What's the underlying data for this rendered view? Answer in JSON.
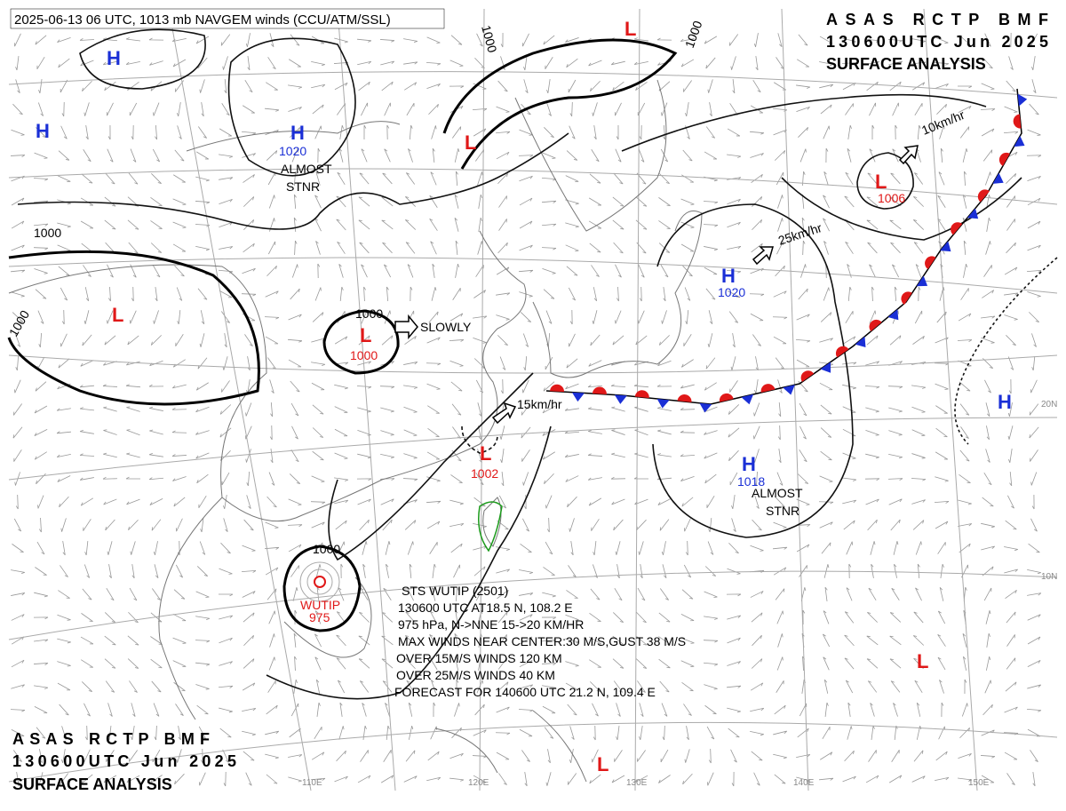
{
  "header": "2025-06-13 06 UTC, 1013 mb NAVGEM winds (CCU/ATM/SSL)",
  "title_top": [
    "ASAS RCTP BMF",
    "130600UTC Jun 2025",
    "SURFACE ANALYSIS"
  ],
  "title_bottom": [
    "ASAS RCTP BMF",
    "130600UTC Jun 2025",
    "SURFACE ANALYSIS"
  ],
  "systems": [
    {
      "label": "H"
    },
    {
      "label": "H"
    },
    {
      "label": "H",
      "pressure": "1020",
      "note": [
        "ALMOST",
        "STNR"
      ]
    },
    {
      "label": "L"
    },
    {
      "label": "L"
    },
    {
      "label": "L"
    },
    {
      "label": "L",
      "pressure": "1000"
    },
    {
      "label": "L",
      "pressure": "1002"
    },
    {
      "label": "L",
      "pressure": "1006"
    },
    {
      "label": "H",
      "pressure": "1020"
    },
    {
      "label": "H",
      "pressure": "1018",
      "note": [
        "ALMOST",
        "STNR"
      ]
    },
    {
      "label": "H"
    },
    {
      "label": "L"
    },
    {
      "label": "L"
    }
  ],
  "typhoon": {
    "name": "WUTIP",
    "pressure": "975",
    "lines": [
      "STS  WUTIP  (2501)",
      "130600 UTC  AT18.5 N, 108.2 E",
      "975 hPa, N->NNE  15->20 KM/HR",
      "MAX WINDS NEAR CENTER:30 M/S,GUST 38 M/S",
      "OVER 15M/S WINDS 120 KM",
      "OVER 25M/S WINDS 40 KM",
      "FORECAST FOR 140600 UTC 21.2 N, 109.4 E"
    ]
  },
  "isobar_labels": [
    "1000",
    "1000",
    "1000",
    "1000",
    "1000",
    "1000"
  ],
  "motions": [
    "SLOWLY",
    "15km/hr",
    "25km/hr",
    "10km/hr"
  ],
  "longitudes": [
    "110E",
    "120E",
    "130E",
    "140E",
    "150E"
  ],
  "latitudes": [
    "20N",
    "10N"
  ]
}
